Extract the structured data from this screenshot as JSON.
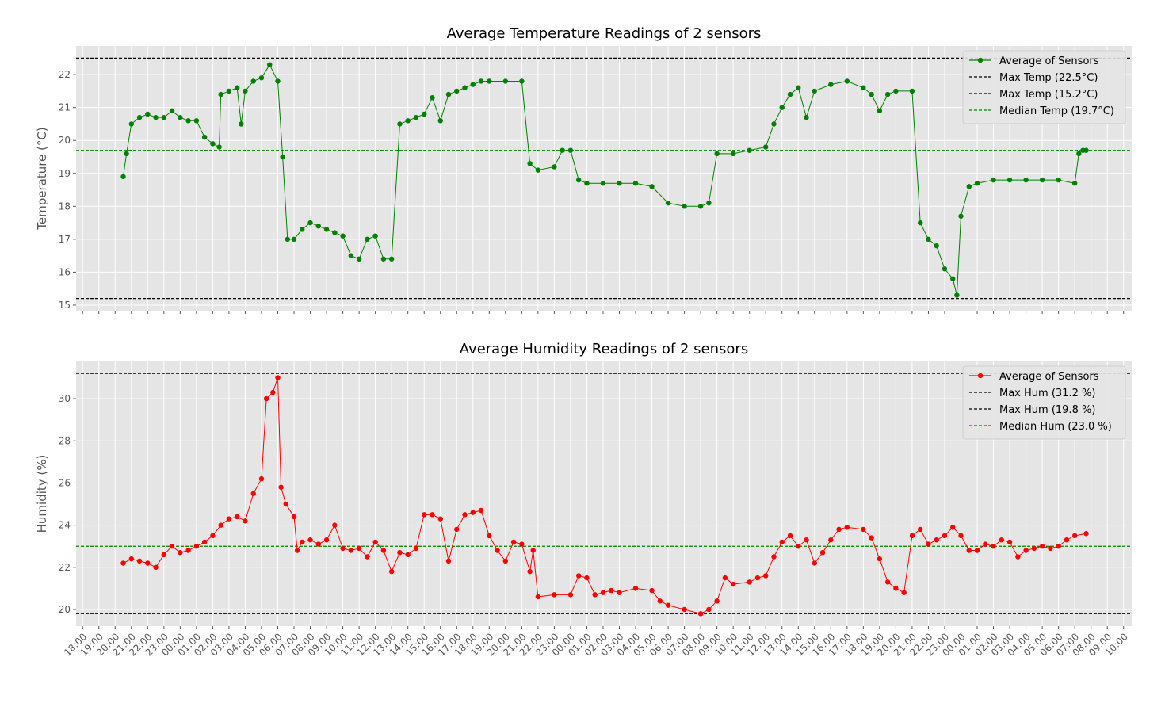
{
  "chart_data": [
    {
      "type": "line",
      "title": "Average Temperature Readings of 2 sensors",
      "y_label": "Temperature (°C)",
      "xlim": [
        -0.4,
        64.5
      ],
      "ylim": [
        14.83,
        22.87
      ],
      "yticks": [
        15,
        16,
        17,
        18,
        19,
        20,
        21,
        22
      ],
      "xticks": [
        0,
        1,
        2,
        3,
        4,
        5,
        6,
        7,
        8,
        9,
        10,
        11,
        12,
        13,
        14,
        15,
        16,
        17,
        18,
        19,
        20,
        21,
        22,
        23,
        24,
        25,
        26,
        27,
        28,
        29,
        30,
        31,
        32,
        33,
        34,
        35,
        36,
        37,
        38,
        39,
        40,
        41,
        42,
        43,
        44,
        45,
        46,
        47,
        48,
        49,
        50,
        51,
        52,
        53,
        54,
        55,
        56,
        57,
        58,
        59,
        60,
        61,
        62,
        63,
        64
      ],
      "grid": true,
      "legend": "upper right",
      "series": [
        {
          "name": "Average of Sensors",
          "color": "green",
          "x": [
            2.5,
            2.7,
            3.0,
            3.5,
            4.0,
            4.5,
            5.0,
            5.5,
            6.0,
            6.5,
            7.0,
            7.5,
            8.0,
            8.4,
            8.5,
            9.0,
            9.5,
            9.75,
            10.0,
            10.5,
            11.0,
            11.5,
            12.0,
            12.3,
            12.6,
            13.0,
            13.5,
            14.0,
            14.5,
            15.0,
            15.5,
            16.0,
            16.5,
            17.0,
            17.5,
            18.0,
            18.5,
            19.0,
            19.5,
            20.0,
            20.5,
            21.0,
            21.5,
            22.0,
            22.5,
            23.0,
            23.5,
            24.0,
            24.5,
            25.0,
            26.0,
            27.0,
            27.5,
            28.0,
            29.0,
            29.5,
            30.0,
            30.5,
            31.0,
            32.0,
            33.0,
            34.0,
            35.0,
            36.0,
            37.0,
            38.0,
            38.5,
            39.0,
            40.0,
            41.0,
            42.0,
            42.5,
            43.0,
            43.5,
            44.0,
            44.5,
            45.0,
            46.0,
            47.0,
            48.0,
            48.5,
            49.0,
            49.5,
            50.0,
            51.0,
            51.5,
            52.0,
            52.5,
            53.0,
            53.5,
            53.75,
            54.0,
            54.5,
            55.0,
            56.0,
            57.0,
            58.0,
            59.0,
            60.0,
            61.0,
            61.25,
            61.5,
            61.7
          ],
          "values": [
            18.9,
            19.6,
            20.5,
            20.7,
            20.8,
            20.7,
            20.7,
            20.9,
            20.7,
            20.6,
            20.6,
            20.1,
            19.9,
            19.8,
            21.4,
            21.5,
            21.6,
            20.5,
            21.5,
            21.8,
            21.9,
            22.3,
            21.8,
            19.5,
            17.0,
            17.0,
            17.3,
            17.5,
            17.4,
            17.3,
            17.2,
            17.1,
            16.5,
            16.4,
            17.0,
            17.1,
            16.4,
            16.4,
            20.5,
            20.6,
            20.7,
            20.8,
            21.3,
            20.6,
            21.4,
            21.5,
            21.6,
            21.7,
            21.8,
            21.8,
            21.8,
            21.8,
            19.3,
            19.1,
            19.2,
            19.7,
            19.7,
            18.8,
            18.7,
            18.7,
            18.7,
            18.7,
            18.6,
            18.1,
            18.0,
            18.0,
            18.1,
            19.6,
            19.6,
            19.7,
            19.8,
            20.5,
            21.0,
            21.4,
            21.6,
            20.7,
            21.5,
            21.7,
            21.8,
            21.6,
            21.4,
            20.9,
            21.4,
            21.5,
            21.5,
            17.5,
            17.0,
            16.8,
            16.1,
            15.8,
            15.3,
            17.7,
            18.6,
            18.7,
            18.8,
            18.8,
            18.8,
            18.8,
            18.8,
            18.7,
            19.6,
            19.7,
            19.7
          ]
        }
      ],
      "reference_lines": [
        {
          "value": 22.5,
          "label": "Max Temp (22.5°C)",
          "color": "black"
        },
        {
          "value": 15.2,
          "label": "Max Temp (15.2°C)",
          "color": "black"
        },
        {
          "value": 19.7,
          "label": "Median Temp (19.7°C)",
          "color": "green"
        }
      ]
    },
    {
      "type": "line",
      "title": "Average Humidity Readings of 2 sensors",
      "y_label": "Humidity (%)",
      "xlim": [
        -0.4,
        64.5
      ],
      "ylim": [
        19.21,
        31.77
      ],
      "yticks": [
        20,
        22,
        24,
        26,
        28,
        30
      ],
      "xticks": [
        {
          "value": 0,
          "label": "18:00"
        },
        {
          "value": 1,
          "label": "19:00"
        },
        {
          "value": 2,
          "label": "20:00"
        },
        {
          "value": 3,
          "label": "21:00"
        },
        {
          "value": 4,
          "label": "22:00"
        },
        {
          "value": 5,
          "label": "23:00"
        },
        {
          "value": 6,
          "label": "00:00"
        },
        {
          "value": 7,
          "label": "01:00"
        },
        {
          "value": 8,
          "label": "02:00"
        },
        {
          "value": 9,
          "label": "03:00"
        },
        {
          "value": 10,
          "label": "04:00"
        },
        {
          "value": 11,
          "label": "05:00"
        },
        {
          "value": 12,
          "label": "06:00"
        },
        {
          "value": 13,
          "label": "07:00"
        },
        {
          "value": 14,
          "label": "08:00"
        },
        {
          "value": 15,
          "label": "09:00"
        },
        {
          "value": 16,
          "label": "10:00"
        },
        {
          "value": 17,
          "label": "11:00"
        },
        {
          "value": 18,
          "label": "12:00"
        },
        {
          "value": 19,
          "label": "13:00"
        },
        {
          "value": 20,
          "label": "14:00"
        },
        {
          "value": 21,
          "label": "15:00"
        },
        {
          "value": 22,
          "label": "16:00"
        },
        {
          "value": 23,
          "label": "17:00"
        },
        {
          "value": 24,
          "label": "18:00"
        },
        {
          "value": 25,
          "label": "19:00"
        },
        {
          "value": 26,
          "label": "20:00"
        },
        {
          "value": 27,
          "label": "21:00"
        },
        {
          "value": 28,
          "label": "22:00"
        },
        {
          "value": 29,
          "label": "23:00"
        },
        {
          "value": 30,
          "label": "00:00"
        },
        {
          "value": 31,
          "label": "01:00"
        },
        {
          "value": 32,
          "label": "02:00"
        },
        {
          "value": 33,
          "label": "03:00"
        },
        {
          "value": 34,
          "label": "04:00"
        },
        {
          "value": 35,
          "label": "05:00"
        },
        {
          "value": 36,
          "label": "06:00"
        },
        {
          "value": 37,
          "label": "07:00"
        },
        {
          "value": 38,
          "label": "08:00"
        },
        {
          "value": 39,
          "label": "09:00"
        },
        {
          "value": 40,
          "label": "10:00"
        },
        {
          "value": 41,
          "label": "11:00"
        },
        {
          "value": 42,
          "label": "12:00"
        },
        {
          "value": 43,
          "label": "13:00"
        },
        {
          "value": 44,
          "label": "14:00"
        },
        {
          "value": 45,
          "label": "15:00"
        },
        {
          "value": 46,
          "label": "16:00"
        },
        {
          "value": 47,
          "label": "17:00"
        },
        {
          "value": 48,
          "label": "18:00"
        },
        {
          "value": 49,
          "label": "19:00"
        },
        {
          "value": 50,
          "label": "20:00"
        },
        {
          "value": 51,
          "label": "21:00"
        },
        {
          "value": 52,
          "label": "22:00"
        },
        {
          "value": 53,
          "label": "23:00"
        },
        {
          "value": 54,
          "label": "00:00"
        },
        {
          "value": 55,
          "label": "01:00"
        },
        {
          "value": 56,
          "label": "02:00"
        },
        {
          "value": 57,
          "label": "03:00"
        },
        {
          "value": 58,
          "label": "04:00"
        },
        {
          "value": 59,
          "label": "05:00"
        },
        {
          "value": 60,
          "label": "06:00"
        },
        {
          "value": 61,
          "label": "07:00"
        },
        {
          "value": 62,
          "label": "08:00"
        },
        {
          "value": 63,
          "label": "09:00"
        },
        {
          "value": 64,
          "label": "10:00"
        }
      ],
      "grid": true,
      "legend": "upper right",
      "series": [
        {
          "name": "Average of Sensors",
          "color": "red",
          "x": [
            2.5,
            3.0,
            3.5,
            4.0,
            4.5,
            5.0,
            5.5,
            6.0,
            6.5,
            7.0,
            7.5,
            8.0,
            8.5,
            9.0,
            9.5,
            10.0,
            10.5,
            11.0,
            11.3,
            11.7,
            12.0,
            12.2,
            12.5,
            13.0,
            13.2,
            13.5,
            14.0,
            14.5,
            15.0,
            15.5,
            16.0,
            16.5,
            17.0,
            17.5,
            18.0,
            18.5,
            19.0,
            19.5,
            20.0,
            20.5,
            21.0,
            21.5,
            22.0,
            22.5,
            23.0,
            23.5,
            24.0,
            24.5,
            25.0,
            25.5,
            26.0,
            26.5,
            27.0,
            27.5,
            27.7,
            28.0,
            29.0,
            30.0,
            30.5,
            31.0,
            31.5,
            32.0,
            32.5,
            33.0,
            34.0,
            35.0,
            35.5,
            36.0,
            37.0,
            38.0,
            38.5,
            39.0,
            39.5,
            40.0,
            41.0,
            41.5,
            42.0,
            42.5,
            43.0,
            43.5,
            44.0,
            44.5,
            45.0,
            45.5,
            46.0,
            46.5,
            47.0,
            48.0,
            48.5,
            49.0,
            49.5,
            50.0,
            50.5,
            51.0,
            51.5,
            52.0,
            52.5,
            53.0,
            53.5,
            54.0,
            54.5,
            55.0,
            55.5,
            56.0,
            56.5,
            57.0,
            57.5,
            58.0,
            58.5,
            59.0,
            59.5,
            60.0,
            60.5,
            61.0,
            61.7
          ],
          "values": [
            22.2,
            22.4,
            22.3,
            22.2,
            22.0,
            22.6,
            23.0,
            22.7,
            22.8,
            23.0,
            23.2,
            23.5,
            24.0,
            24.3,
            24.4,
            24.2,
            25.5,
            26.2,
            30.0,
            30.3,
            31.0,
            25.8,
            25.0,
            24.4,
            22.8,
            23.2,
            23.3,
            23.1,
            23.3,
            24.0,
            22.9,
            22.8,
            22.9,
            22.5,
            23.2,
            22.8,
            21.8,
            22.7,
            22.6,
            22.9,
            24.5,
            24.5,
            24.3,
            22.3,
            23.8,
            24.5,
            24.6,
            24.7,
            23.5,
            22.8,
            22.3,
            23.2,
            23.1,
            21.8,
            22.8,
            20.6,
            20.7,
            20.7,
            21.6,
            21.5,
            20.7,
            20.8,
            20.9,
            20.8,
            21.0,
            20.9,
            20.4,
            20.2,
            20.0,
            19.8,
            20.0,
            20.4,
            21.5,
            21.2,
            21.3,
            21.5,
            21.6,
            22.5,
            23.2,
            23.5,
            23.0,
            23.3,
            22.2,
            22.7,
            23.3,
            23.8,
            23.9,
            23.8,
            23.4,
            22.4,
            21.3,
            21.0,
            20.8,
            23.5,
            23.8,
            23.1,
            23.3,
            23.5,
            23.9,
            23.5,
            22.8,
            22.8,
            23.1,
            23.0,
            23.3,
            23.2,
            22.5,
            22.8,
            22.9,
            23.0,
            22.9,
            23.0,
            23.3,
            23.5,
            23.6
          ]
        }
      ],
      "reference_lines": [
        {
          "value": 31.2,
          "label": "Max Hum (31.2 %)",
          "color": "black"
        },
        {
          "value": 19.8,
          "label": "Max Hum (19.8 %)",
          "color": "black"
        },
        {
          "value": 23.0,
          "label": "Median Hum (23.0 %)",
          "color": "green"
        }
      ]
    }
  ]
}
